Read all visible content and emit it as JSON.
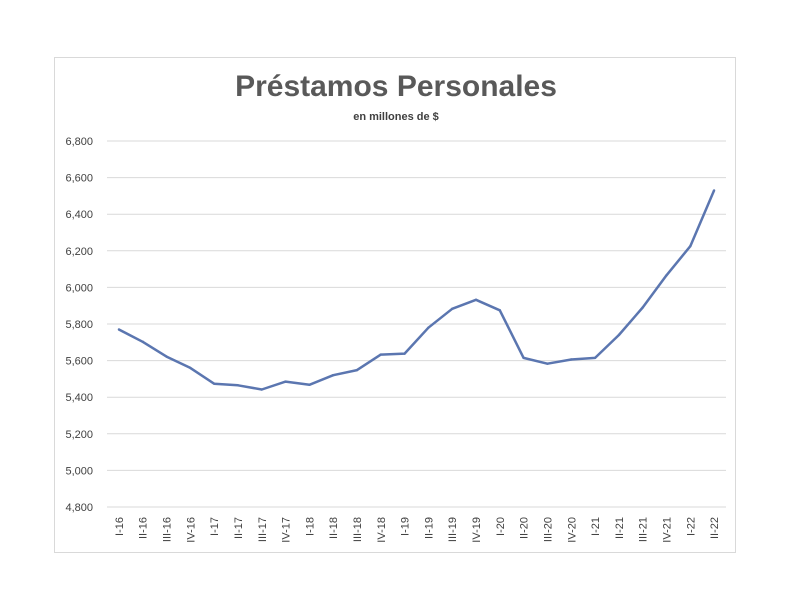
{
  "chart_data": {
    "type": "line",
    "title": "Préstamos Personales",
    "subtitle": "en millones de $",
    "xlabel": "",
    "ylabel": "",
    "ylim": [
      4800,
      6800
    ],
    "yticks": [
      4800,
      5000,
      5200,
      5400,
      5600,
      5800,
      6000,
      6200,
      6400,
      6600,
      6800
    ],
    "ytick_labels": [
      "4,800",
      "5,000",
      "5,200",
      "5,400",
      "5,600",
      "5,800",
      "6,000",
      "6,200",
      "6,400",
      "6,600",
      "6,800"
    ],
    "grid": true,
    "legend": "none",
    "categories": [
      "I-16",
      "II-16",
      "III-16",
      "IV-16",
      "I-17",
      "II-17",
      "III-17",
      "IV-17",
      "I-18",
      "II-18",
      "III-18",
      "IV-18",
      "I-19",
      "II-19",
      "III-19",
      "IV-19",
      "I-20",
      "II-20",
      "III-20",
      "IV-20",
      "I-21",
      "II-21",
      "III-21",
      "IV-21",
      "I-22",
      "II-22"
    ],
    "series": [
      {
        "color": "#5b76b0",
        "values": [
          5770,
          5703,
          5622,
          5560,
          5474,
          5465,
          5442,
          5485,
          5468,
          5520,
          5548,
          5633,
          5638,
          5780,
          5883,
          5932,
          5875,
          5615,
          5583,
          5606,
          5615,
          5740,
          5890,
          6066,
          6225,
          6530
        ]
      }
    ]
  }
}
